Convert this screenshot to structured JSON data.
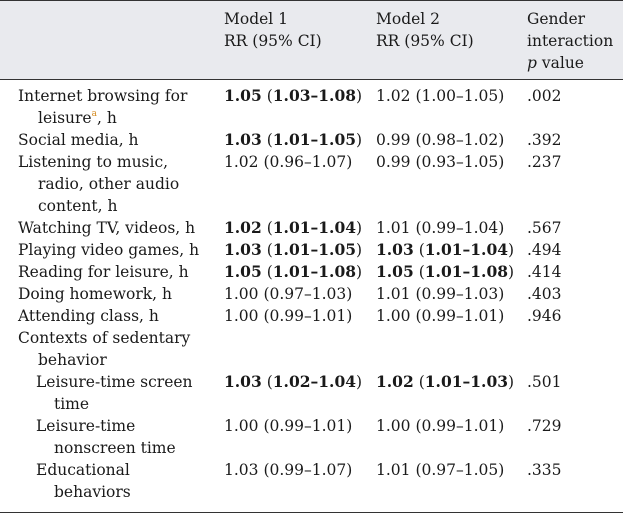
{
  "header": {
    "model1": [
      "Model 1",
      "RR (95% CI)"
    ],
    "model2": [
      "Model 2",
      "RR (95% CI)"
    ],
    "gender": [
      "Gender",
      "interaction"
    ],
    "gender_italic": "p",
    "gender_rest": " value"
  },
  "rows": [
    {
      "label": [
        "Internet browsing for",
        "leisure"
      ],
      "label_sup": "a",
      "label_tail": ", h",
      "m1": {
        "bold": true,
        "a": "1.05",
        "b": "(",
        "c": "1.03–1.08",
        "d": ")"
      },
      "m2": {
        "bold": false,
        "text": "1.02 (1.00–1.05)"
      },
      "p": ".002"
    },
    {
      "label": [
        "Social media, h"
      ],
      "m1": {
        "bold": true,
        "a": "1.03",
        "b": "(",
        "c": "1.01–1.05",
        "d": ")"
      },
      "m2": {
        "bold": false,
        "text": "0.99 (0.98–1.02)"
      },
      "p": ".392"
    },
    {
      "label": [
        "Listening to music,",
        "radio, other audio",
        "content, h"
      ],
      "m1": {
        "bold": false,
        "text": "1.02 (0.96–1.07)"
      },
      "m2": {
        "bold": false,
        "text": "0.99 (0.93–1.05)"
      },
      "p": ".237"
    },
    {
      "label": [
        "Watching TV, videos, h"
      ],
      "m1": {
        "bold": true,
        "a": "1.02",
        "b": "(",
        "c": "1.01–1.04",
        "d": ")"
      },
      "m2": {
        "bold": false,
        "text": "1.01 (0.99–1.04)"
      },
      "p": ".567"
    },
    {
      "label": [
        "Playing video games, h"
      ],
      "m1": {
        "bold": true,
        "a": "1.03",
        "b": "(",
        "c": "1.01–1.05",
        "d": ")"
      },
      "m2": {
        "bold": true,
        "a": "1.03",
        "b": "(",
        "c": "1.01–1.04",
        "d": ")"
      },
      "p": ".494"
    },
    {
      "label": [
        "Reading for leisure, h"
      ],
      "m1": {
        "bold": true,
        "a": "1.05",
        "b": "(",
        "c": "1.01–1.08",
        "d": ")"
      },
      "m2": {
        "bold": true,
        "a": "1.05",
        "b": "(",
        "c": "1.01–1.08",
        "d": ")"
      },
      "p": ".414"
    },
    {
      "label": [
        "Doing homework, h"
      ],
      "m1": {
        "bold": false,
        "text": "1.00 (0.97–1.03)"
      },
      "m2": {
        "bold": false,
        "text": "1.01 (0.99–1.03)"
      },
      "p": ".403"
    },
    {
      "label": [
        "Attending class, h"
      ],
      "m1": {
        "bold": false,
        "text": "1.00 (0.99–1.01)"
      },
      "m2": {
        "bold": false,
        "text": "1.00 (0.99–1.01)"
      },
      "p": ".946"
    }
  ],
  "section": [
    "Contexts of sedentary",
    "behavior"
  ],
  "subrows": [
    {
      "label": [
        "Leisure-time screen",
        "time"
      ],
      "m1": {
        "bold": true,
        "a": "1.03",
        "b": "(",
        "c": "1.02–1.04",
        "d": ")"
      },
      "m2": {
        "bold": true,
        "a": "1.02",
        "b": "(",
        "c": "1.01–1.03",
        "d": ")"
      },
      "p": ".501"
    },
    {
      "label": [
        "Leisure-time",
        "nonscreen time"
      ],
      "m1": {
        "bold": false,
        "text": "1.00 (0.99–1.01)"
      },
      "m2": {
        "bold": false,
        "text": "1.00 (0.99–1.01)"
      },
      "p": ".729"
    },
    {
      "label": [
        "Educational",
        "behaviors"
      ],
      "m1": {
        "bold": false,
        "text": "1.03 (0.99–1.07)"
      },
      "m2": {
        "bold": false,
        "text": "1.01 (0.97–1.05)"
      },
      "p": ".335"
    }
  ]
}
